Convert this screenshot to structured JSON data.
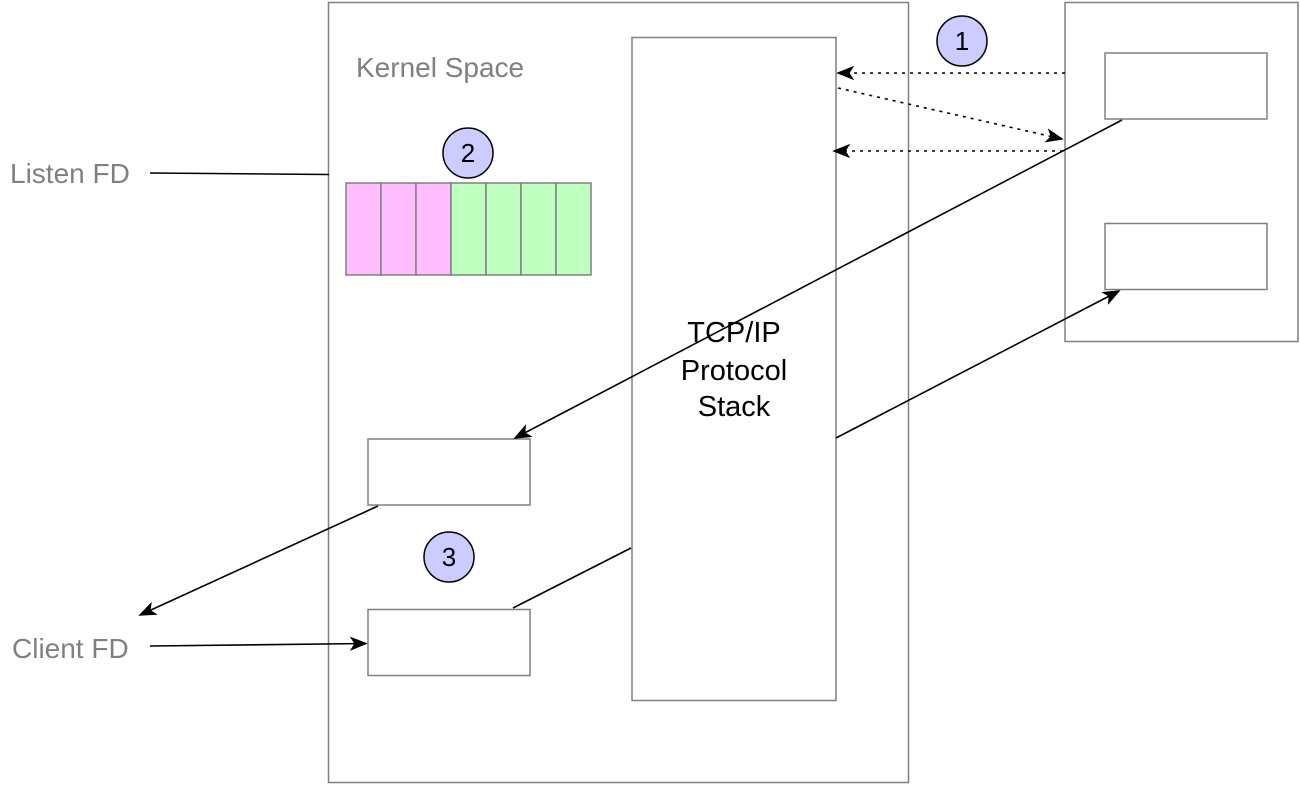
{
  "labels": {
    "kernel_space": "Kernel Space",
    "listen_fd": "Listen FD",
    "client_fd": "Client FD",
    "stack_line1": "TCP/IP",
    "stack_line2": "Protocol",
    "stack_line3": "Stack"
  },
  "badges": {
    "one": "1",
    "two": "2",
    "three": "3"
  },
  "queue_cells": [
    "pending",
    "pending",
    "pending",
    "ready",
    "ready",
    "ready",
    "ready"
  ],
  "colors": {
    "border": "#808080",
    "pending_cell": "#ffbfff",
    "ready_cell": "#bfffbf",
    "badge_fill": "#ccccff",
    "arrow": "#000000"
  }
}
